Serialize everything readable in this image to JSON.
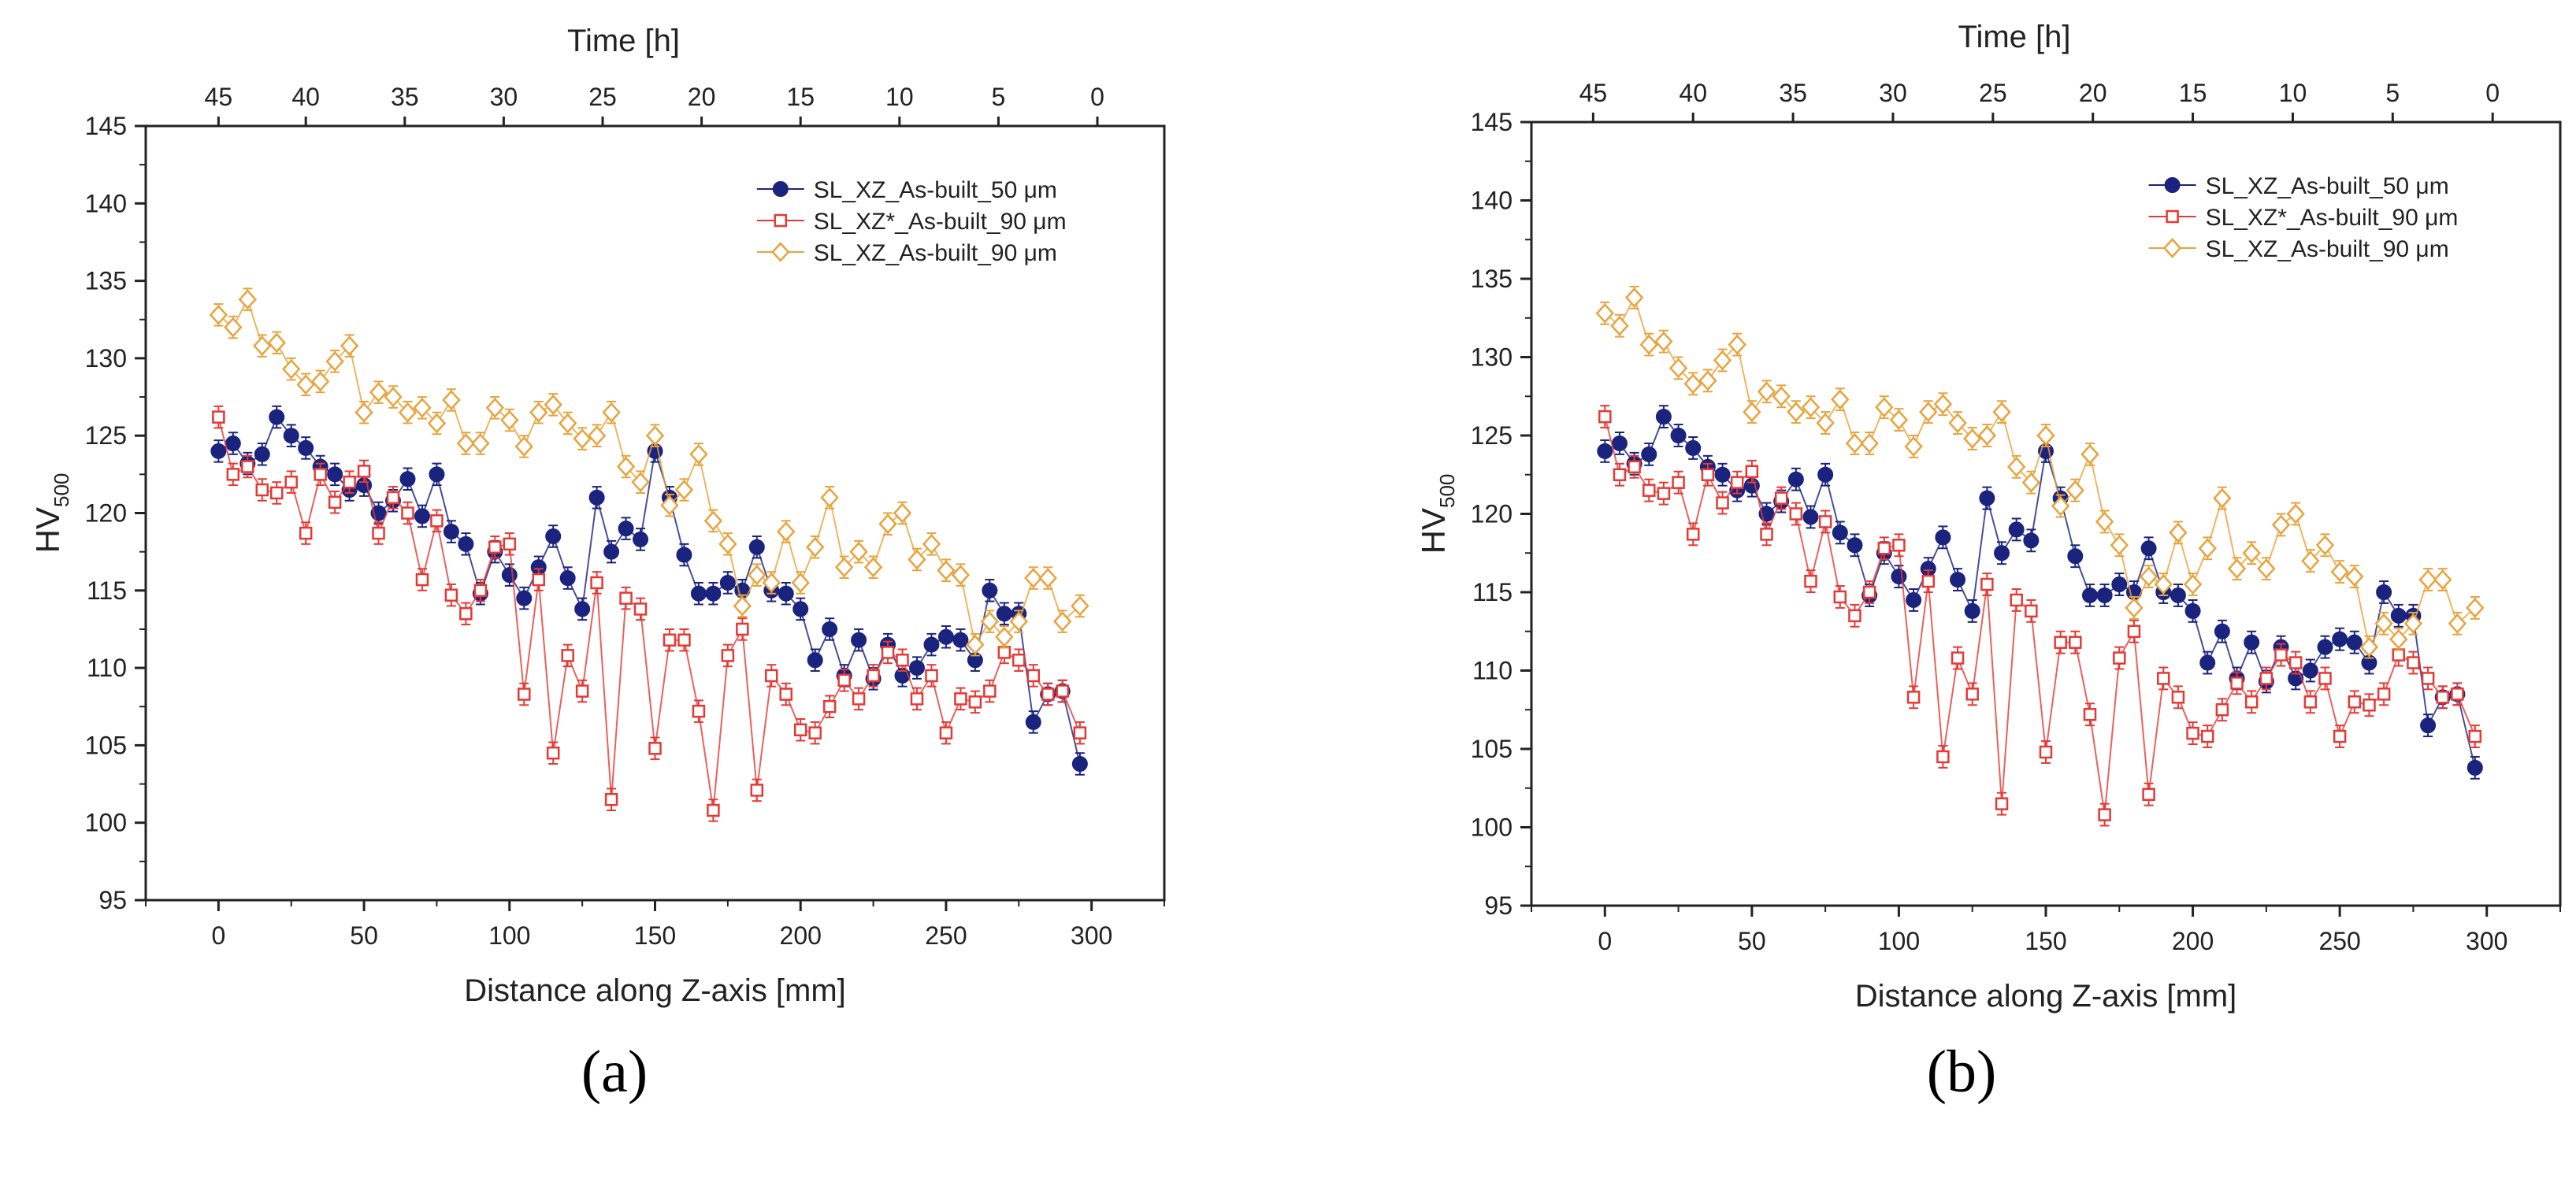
{
  "panels": [
    {
      "label": "(a)"
    },
    {
      "label": "(b)"
    }
  ],
  "chart_data": [
    {
      "type": "scatter",
      "panel": "(a)",
      "title": "",
      "xlabel": "Distance along Z-axis [mm]",
      "x2label": "Time [h]",
      "ylabel": "HV",
      "ylabel_sub": "500",
      "xlim": [
        -25,
        325
      ],
      "ylim": [
        95,
        145
      ],
      "x_ticks": [
        0,
        50,
        100,
        150,
        200,
        250,
        300
      ],
      "y_ticks": [
        95,
        100,
        105,
        110,
        115,
        120,
        125,
        130,
        135,
        140,
        145
      ],
      "time_ticks": [
        {
          "label": "45",
          "x": 0
        },
        {
          "label": "40",
          "x": 30
        },
        {
          "label": "35",
          "x": 64
        },
        {
          "label": "30",
          "x": 98
        },
        {
          "label": "25",
          "x": 132
        },
        {
          "label": "20",
          "x": 166
        },
        {
          "label": "15",
          "x": 200
        },
        {
          "label": "10",
          "x": 234
        },
        {
          "label": "5",
          "x": 268
        },
        {
          "label": "0",
          "x": 302
        }
      ],
      "legend_position": "top-right",
      "series": [
        {
          "name": "SL_XZ_As-built_50 μm",
          "color": "#1a237e",
          "marker": "filled-circle",
          "x": [
            0,
            5,
            10,
            15,
            20,
            25,
            30,
            35,
            40,
            45,
            50,
            55,
            60,
            65,
            70,
            75,
            80,
            85,
            90,
            95,
            100,
            105,
            110,
            115,
            120,
            125,
            130,
            135,
            140,
            145,
            150,
            155,
            160,
            165,
            170,
            175,
            180,
            185,
            190,
            195,
            200,
            205,
            210,
            215,
            220,
            225,
            230,
            235,
            240,
            245,
            250,
            255,
            260,
            265,
            270,
            275,
            280,
            285,
            290,
            296
          ],
          "y": [
            124.0,
            124.5,
            123.2,
            123.8,
            126.2,
            125.0,
            124.2,
            123.0,
            122.5,
            121.5,
            121.8,
            120.0,
            120.8,
            122.2,
            119.8,
            122.5,
            118.8,
            118.0,
            114.8,
            117.5,
            116.0,
            114.5,
            116.5,
            118.5,
            115.8,
            113.8,
            121.0,
            117.5,
            119.0,
            118.3,
            124.0,
            121.0,
            117.3,
            114.8,
            114.8,
            115.5,
            115.0,
            117.8,
            115.0,
            114.8,
            113.8,
            110.5,
            112.5,
            109.5,
            111.8,
            109.3,
            111.5,
            109.5,
            110.0,
            111.5,
            112.0,
            111.8,
            110.5,
            115.0,
            113.5,
            113.5,
            106.5,
            108.3,
            108.5,
            103.8
          ]
        },
        {
          "name": "SL_XZ*_As-built_90 μm",
          "color": "#e53935",
          "marker": "open-square",
          "x": [
            0,
            5,
            10,
            15,
            20,
            25,
            30,
            35,
            40,
            45,
            50,
            55,
            60,
            65,
            70,
            75,
            80,
            85,
            90,
            95,
            100,
            105,
            110,
            115,
            120,
            125,
            130,
            135,
            140,
            145,
            150,
            155,
            160,
            165,
            170,
            175,
            180,
            185,
            190,
            195,
            200,
            205,
            210,
            215,
            220,
            225,
            230,
            235,
            240,
            245,
            250,
            255,
            260,
            265,
            270,
            275,
            280,
            285,
            290,
            296
          ],
          "y": [
            126.2,
            122.5,
            123.0,
            121.5,
            121.3,
            122.0,
            118.7,
            122.5,
            120.7,
            122.0,
            122.7,
            118.7,
            121.0,
            120.0,
            115.7,
            119.5,
            114.7,
            113.5,
            115.0,
            117.8,
            118.0,
            108.3,
            115.7,
            104.5,
            110.8,
            108.5,
            115.5,
            101.5,
            114.5,
            113.8,
            104.8,
            111.8,
            111.8,
            107.2,
            100.8,
            110.8,
            112.5,
            102.1,
            109.5,
            108.3,
            106.0,
            105.8,
            107.5,
            109.2,
            108.0,
            109.5,
            111.0,
            110.5,
            108.0,
            109.5,
            105.8,
            108.0,
            107.8,
            108.5,
            111.0,
            110.5,
            109.5,
            108.3,
            108.5,
            105.8
          ]
        },
        {
          "name": "SL_XZ_As-built_90 μm",
          "color": "#e8a33c",
          "marker": "open-diamond",
          "x": [
            0,
            5,
            10,
            15,
            20,
            25,
            30,
            35,
            40,
            45,
            50,
            55,
            60,
            65,
            70,
            75,
            80,
            85,
            90,
            95,
            100,
            105,
            110,
            115,
            120,
            125,
            130,
            135,
            140,
            145,
            150,
            155,
            160,
            165,
            170,
            175,
            180,
            185,
            190,
            195,
            200,
            205,
            210,
            215,
            220,
            225,
            230,
            235,
            240,
            245,
            250,
            255,
            260,
            265,
            270,
            275,
            280,
            285,
            290,
            296
          ],
          "y": [
            132.8,
            132.0,
            133.8,
            130.8,
            131.0,
            129.3,
            128.3,
            128.5,
            129.8,
            130.8,
            126.5,
            127.8,
            127.5,
            126.5,
            126.8,
            125.8,
            127.3,
            124.5,
            124.5,
            126.8,
            126.0,
            124.3,
            126.5,
            127.0,
            125.8,
            124.8,
            125.0,
            126.5,
            123.0,
            122.0,
            125.0,
            120.5,
            121.5,
            123.8,
            119.5,
            118.0,
            114.0,
            116.0,
            115.5,
            118.8,
            115.5,
            117.8,
            121.0,
            116.5,
            117.5,
            116.5,
            119.3,
            120.0,
            117.0,
            118.0,
            116.3,
            116.0,
            111.5,
            113.0,
            112.0,
            113.0,
            115.8,
            115.8,
            113.0,
            114.0
          ]
        }
      ]
    },
    {
      "type": "scatter",
      "panel": "(b)",
      "title": "",
      "xlabel": "Distance along Z-axis [mm]",
      "x2label": "Time [h]",
      "ylabel": "HV",
      "ylabel_sub": "500",
      "xlim": [
        -25,
        325
      ],
      "ylim": [
        95,
        145
      ],
      "x_ticks": [
        0,
        50,
        100,
        150,
        200,
        250,
        300
      ],
      "y_ticks": [
        95,
        100,
        105,
        110,
        115,
        120,
        125,
        130,
        135,
        140,
        145
      ],
      "time_ticks": [
        {
          "label": "45",
          "x": -4
        },
        {
          "label": "40",
          "x": 30
        },
        {
          "label": "35",
          "x": 64
        },
        {
          "label": "30",
          "x": 98
        },
        {
          "label": "25",
          "x": 132
        },
        {
          "label": "20",
          "x": 166
        },
        {
          "label": "15",
          "x": 200
        },
        {
          "label": "10",
          "x": 234
        },
        {
          "label": "5",
          "x": 268
        },
        {
          "label": "0",
          "x": 302
        }
      ],
      "legend_position": "top-right",
      "series": [
        {
          "name": "SL_XZ_As-built_50 μm",
          "color": "#1a237e",
          "marker": "filled-circle",
          "x": [
            0,
            5,
            10,
            15,
            20,
            25,
            30,
            35,
            40,
            45,
            50,
            55,
            60,
            65,
            70,
            75,
            80,
            85,
            90,
            95,
            100,
            105,
            110,
            115,
            120,
            125,
            130,
            135,
            140,
            145,
            150,
            155,
            160,
            165,
            170,
            175,
            180,
            185,
            190,
            195,
            200,
            205,
            210,
            215,
            220,
            225,
            230,
            235,
            240,
            245,
            250,
            255,
            260,
            265,
            270,
            275,
            280,
            285,
            290,
            296
          ],
          "y": [
            124.0,
            124.5,
            123.2,
            123.8,
            126.2,
            125.0,
            124.2,
            123.0,
            122.5,
            121.5,
            121.8,
            120.0,
            120.8,
            122.2,
            119.8,
            122.5,
            118.8,
            118.0,
            114.8,
            117.5,
            116.0,
            114.5,
            116.5,
            118.5,
            115.8,
            113.8,
            121.0,
            117.5,
            119.0,
            118.3,
            124.0,
            121.0,
            117.3,
            114.8,
            114.8,
            115.5,
            115.0,
            117.8,
            115.0,
            114.8,
            113.8,
            110.5,
            112.5,
            109.5,
            111.8,
            109.3,
            111.5,
            109.5,
            110.0,
            111.5,
            112.0,
            111.8,
            110.5,
            115.0,
            113.5,
            113.5,
            106.5,
            108.3,
            108.5,
            103.8
          ]
        },
        {
          "name": "SL_XZ*_As-built_90 μm",
          "color": "#e53935",
          "marker": "open-square",
          "x": [
            0,
            5,
            10,
            15,
            20,
            25,
            30,
            35,
            40,
            45,
            50,
            55,
            60,
            65,
            70,
            75,
            80,
            85,
            90,
            95,
            100,
            105,
            110,
            115,
            120,
            125,
            130,
            135,
            140,
            145,
            150,
            155,
            160,
            165,
            170,
            175,
            180,
            185,
            190,
            195,
            200,
            205,
            210,
            215,
            220,
            225,
            230,
            235,
            240,
            245,
            250,
            255,
            260,
            265,
            270,
            275,
            280,
            285,
            290,
            296
          ],
          "y": [
            126.2,
            122.5,
            123.0,
            121.5,
            121.3,
            122.0,
            118.7,
            122.5,
            120.7,
            122.0,
            122.7,
            118.7,
            121.0,
            120.0,
            115.7,
            119.5,
            114.7,
            113.5,
            115.0,
            117.8,
            118.0,
            108.3,
            115.7,
            104.5,
            110.8,
            108.5,
            115.5,
            101.5,
            114.5,
            113.8,
            104.8,
            111.8,
            111.8,
            107.2,
            100.8,
            110.8,
            112.5,
            102.1,
            109.5,
            108.3,
            106.0,
            105.8,
            107.5,
            109.2,
            108.0,
            109.5,
            111.0,
            110.5,
            108.0,
            109.5,
            105.8,
            108.0,
            107.8,
            108.5,
            111.0,
            110.5,
            109.5,
            108.3,
            108.5,
            105.8
          ]
        },
        {
          "name": "SL_XZ_As-built_90 μm",
          "color": "#e8a33c",
          "marker": "open-diamond",
          "x": [
            0,
            5,
            10,
            15,
            20,
            25,
            30,
            35,
            40,
            45,
            50,
            55,
            60,
            65,
            70,
            75,
            80,
            85,
            90,
            95,
            100,
            105,
            110,
            115,
            120,
            125,
            130,
            135,
            140,
            145,
            150,
            155,
            160,
            165,
            170,
            175,
            180,
            185,
            190,
            195,
            200,
            205,
            210,
            215,
            220,
            225,
            230,
            235,
            240,
            245,
            250,
            255,
            260,
            265,
            270,
            275,
            280,
            285,
            290,
            296
          ],
          "y": [
            132.8,
            132.0,
            133.8,
            130.8,
            131.0,
            129.3,
            128.3,
            128.5,
            129.8,
            130.8,
            126.5,
            127.8,
            127.5,
            126.5,
            126.8,
            125.8,
            127.3,
            124.5,
            124.5,
            126.8,
            126.0,
            124.3,
            126.5,
            127.0,
            125.8,
            124.8,
            125.0,
            126.5,
            123.0,
            122.0,
            125.0,
            120.5,
            121.5,
            123.8,
            119.5,
            118.0,
            114.0,
            116.0,
            115.5,
            118.8,
            115.5,
            117.8,
            121.0,
            116.5,
            117.5,
            116.5,
            119.3,
            120.0,
            117.0,
            118.0,
            116.3,
            116.0,
            111.5,
            113.0,
            112.0,
            113.0,
            115.8,
            115.8,
            113.0,
            114.0
          ]
        }
      ]
    }
  ]
}
